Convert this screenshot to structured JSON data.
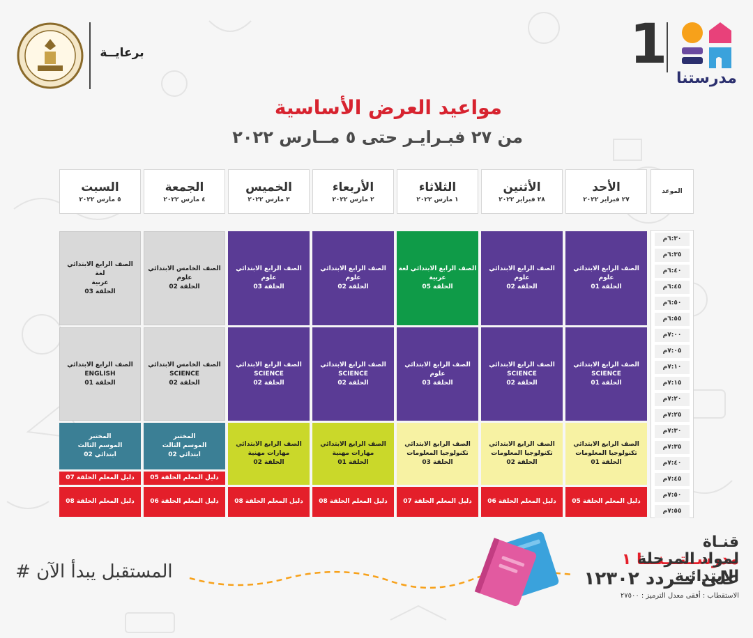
{
  "header": {
    "ministry_seal_text": "MINISTRY OF EDUCATION AND TECHNICAL EDUCATION",
    "sponsor_label": "برعايــة",
    "channel_number": "1",
    "brand_name": "مدرستنا",
    "colors": {
      "accent_red": "#d7232f",
      "brand_navy": "#2b2f6e",
      "brand_orange": "#f7a11a",
      "brand_blue": "#3aa2dc",
      "brand_purple": "#6a4aa0"
    }
  },
  "titles": {
    "main": "مواعيد العرض الأساسية",
    "sub": "من ٢٧ فبـرايـر حتى ٥ مــارس ٢٠٢٢"
  },
  "schedule": {
    "time_header": "الموعد",
    "days": [
      {
        "name": "الأحد",
        "date": "٢٧ فبراير ٢٠٢٢"
      },
      {
        "name": "الأثنين",
        "date": "٢٨ فبراير ٢٠٢٢"
      },
      {
        "name": "الثلاثاء",
        "date": "١ مارس ٢٠٢٢"
      },
      {
        "name": "الأربعاء",
        "date": "٢ مارس ٢٠٢٢"
      },
      {
        "name": "الخميس",
        "date": "٣ مارس ٢٠٢٢"
      },
      {
        "name": "الجمعة",
        "date": "٤ مارس ٢٠٢٢"
      },
      {
        "name": "السبت",
        "date": "٥ مارس ٢٠٢٢"
      }
    ],
    "slots": [
      "٦:٣٠م",
      "٦:٣٥م",
      "٦:٤٠م",
      "٦:٤٥م",
      "٦:٥٠م",
      "٦:٥٥م",
      "٧:٠٠م",
      "٧:٠٥م",
      "٧:١٠م",
      "٧:١٥م",
      "٧:٢٠م",
      "٧:٢٥م",
      "٧:٣٠م",
      "٧:٣٥م",
      "٧:٤٠م",
      "٧:٤٥م",
      "٧:٥٠م",
      "٧:٥٥م"
    ],
    "blocks": {
      "sun": {
        "b1": [
          "الصف الرابع الابتدائي",
          "علوم",
          "الحلقة 01"
        ],
        "b2": [
          "الصف الرابع الابتدائي",
          "SCIENCE",
          "الحلقة 01"
        ],
        "b3": [
          "الصف الرابع الابتدائي",
          "تكنولوجيا المعلومات",
          "الحلقة 01"
        ],
        "b4": [
          "دليل المعلم الحلقة 05"
        ]
      },
      "mon": {
        "b1": [
          "الصف الرابع الابتدائي",
          "علوم",
          "الحلقة 02"
        ],
        "b2": [
          "الصف الرابع الابتدائي",
          "SCIENCE",
          "الحلقة 02"
        ],
        "b3": [
          "الصف الرابع الابتدائي",
          "تكنولوجيا المعلومات",
          "الحلقة 02"
        ],
        "b4": [
          "دليل المعلم الحلقة 06"
        ]
      },
      "tue": {
        "b1": [
          "الصف الرابع الابتدائي   لغة",
          "عربية",
          "الحلقة 05"
        ],
        "b2": [
          "الصف الرابع الابتدائي",
          "علوم",
          "الحلقة 03"
        ],
        "b3": [
          "الصف الرابع الابتدائي",
          "تكنولوجيا المعلومات",
          "الحلقة 03"
        ],
        "b4": [
          "دليل المعلم الحلقة 07"
        ]
      },
      "wed": {
        "b1": [
          "الصف الرابع الابتدائي",
          "علوم",
          "الحلقة 02"
        ],
        "b2": [
          "الصف الرابع الابتدائي",
          "SCIENCE",
          "الحلقة 02"
        ],
        "b3": [
          "الصف الرابع الابتدائي",
          "مهارات مهنية",
          "الحلقة 01"
        ],
        "b4": [
          "دليل المعلم الحلقة 08"
        ]
      },
      "thu": {
        "b1": [
          "الصف الرابع الابتدائي",
          "علوم",
          "الحلقة 03"
        ],
        "b2": [
          "الصف الرابع الابتدائي",
          "SCIENCE",
          "الحلقة 02"
        ],
        "b3": [
          "الصف الرابع الابتدائي",
          "مهارات مهنية",
          "الحلقة 02"
        ],
        "b4": [
          "دليل المعلم الحلقة 08"
        ]
      },
      "fri": {
        "b1": [
          "الصف الخامس الابتدائي",
          "علوم",
          "الحلقة 02"
        ],
        "b2": [
          "الصف الخامس الابتدائي",
          "SCIENCE",
          "الحلقة 02"
        ],
        "b3": [
          "المختبر",
          "الموسم الثالث",
          "ابتدائي 02"
        ],
        "b3b": [
          "دليل المعلم الحلقة 05"
        ],
        "b4": [
          "دليل المعلم الحلقة 06"
        ]
      },
      "sat": {
        "b1": [
          "الصف الرابع الابتدائي   لغة",
          "عربية",
          "الحلقة 03"
        ],
        "b2": [
          "الصف الرابع الابتدائي",
          "ENGLISH",
          "الحلقة 01"
        ],
        "b3": [
          "المختبر",
          "الموسم الثالث",
          "ابتدائي 02"
        ],
        "b3b": [
          "دليل المعلم الحلقة 07"
        ],
        "b4": [
          "دليل المعلم الحلقة 08"
        ]
      }
    }
  },
  "footer": {
    "hashtag": "# المستقبل يبدأ الآن",
    "channel_prefix": "قنـاة",
    "channel_name": "مدرســتـــنـــا ١",
    "line2": "لمواد المرحلة الابتدائية",
    "line3": "على تــردد ١٢٣٠٢",
    "line4": "الاستقطاب : أفقى معدل الترميز : ٢٧٥٠٠"
  }
}
